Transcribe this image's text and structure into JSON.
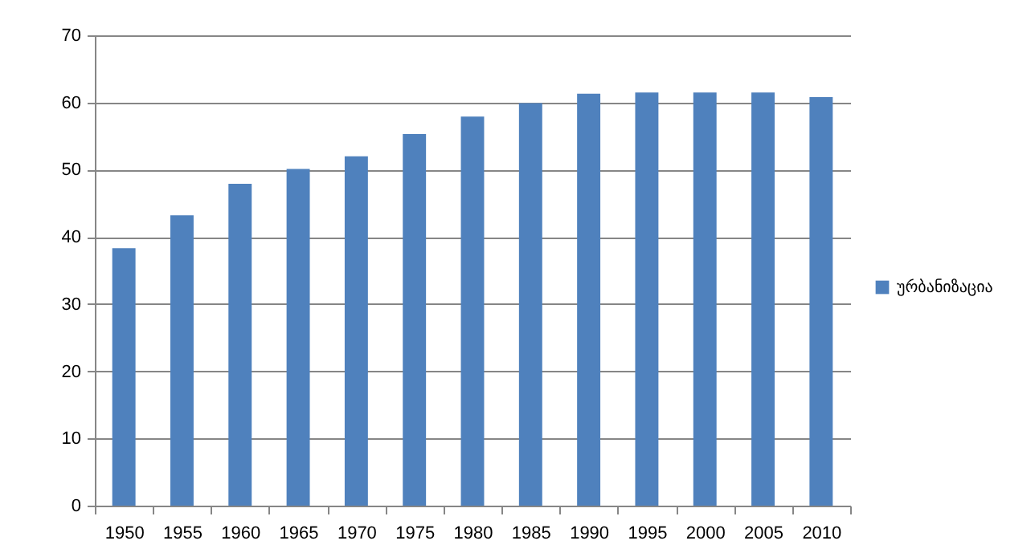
{
  "chart_data": {
    "type": "bar",
    "categories": [
      "1950",
      "1955",
      "1960",
      "1965",
      "1970",
      "1975",
      "1980",
      "1985",
      "1990",
      "1995",
      "2000",
      "2005",
      "2010"
    ],
    "series": [
      {
        "name": "ურბანიზაცია",
        "color": "#4f81bd",
        "values": [
          38.3,
          43.2,
          47.9,
          50.1,
          52.0,
          55.3,
          57.9,
          59.9,
          61.3,
          61.5,
          61.5,
          61.5,
          60.8
        ]
      }
    ],
    "ylim": [
      0,
      70
    ],
    "yticks": [
      0,
      10,
      20,
      30,
      40,
      50,
      60,
      70
    ],
    "grid": "y",
    "legend": "right"
  }
}
